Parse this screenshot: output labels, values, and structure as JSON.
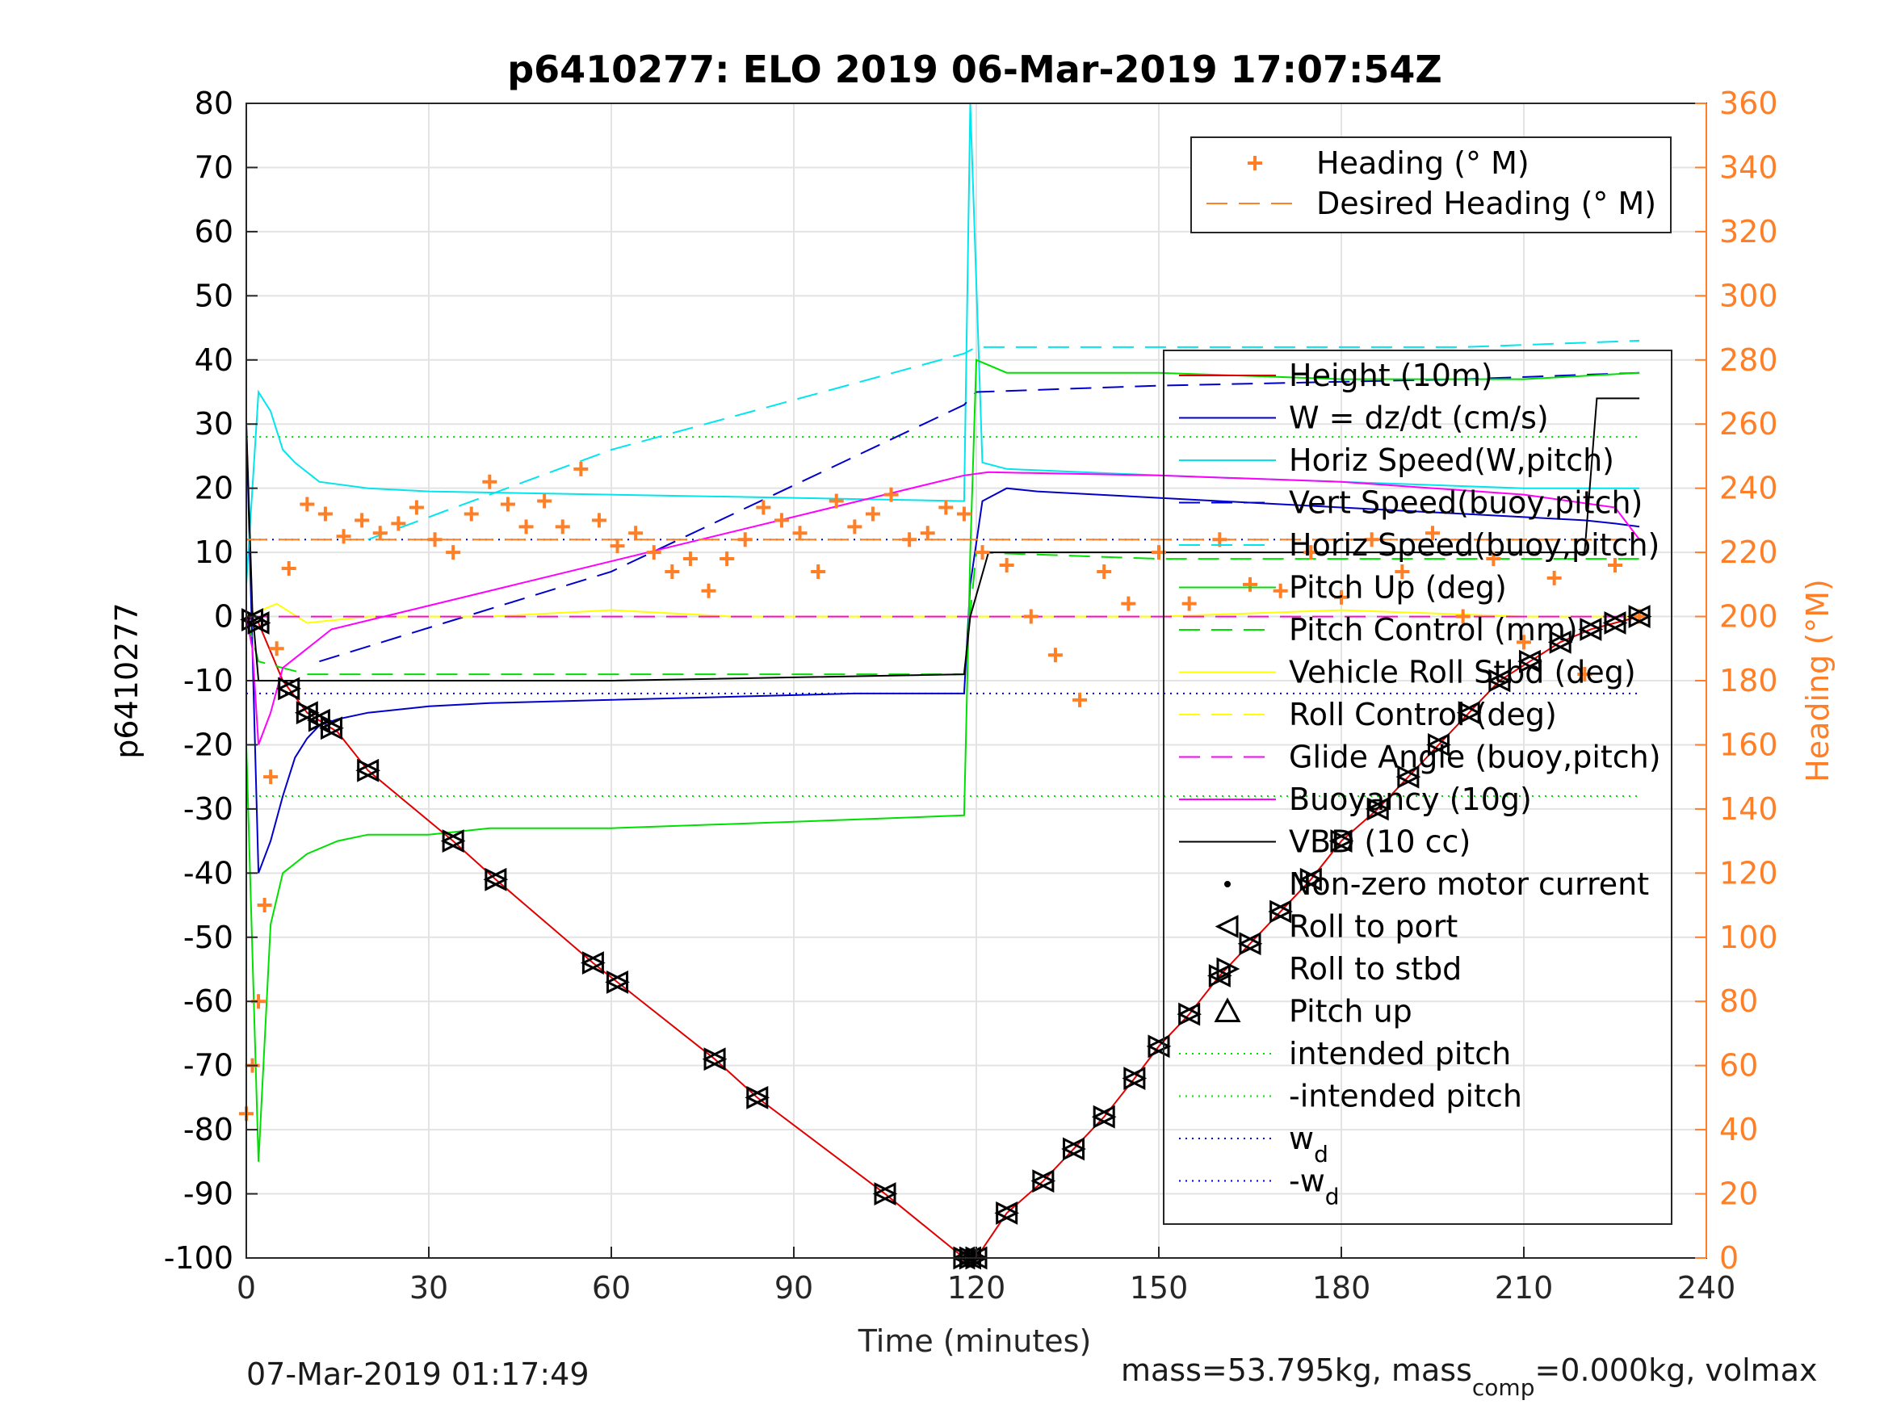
{
  "figure": {
    "title": "p6410277: ELO 2019 06-Mar-2019 17:07:54Z",
    "footer_left": "07-Mar-2019 01:17:49",
    "footer_right": {
      "mass_text": "mass=53.795kg, mass",
      "comp_sub": "comp",
      "rest_text": "=0.000kg, volmax"
    },
    "colors": {
      "heading": "#ff7f27",
      "depth": "#e00000",
      "w": "#0000cc",
      "horiz_speed": "#00e5ee",
      "pitch": "#00e000",
      "roll": "#ffff00",
      "glide": "#ff00ff",
      "vbd": "#000000"
    }
  },
  "chart_data": {
    "type": "line",
    "title": "p6410277: ELO 2019 06-Mar-2019 17:07:54Z",
    "xlabel": "Time (minutes)",
    "ylabel": "p6410277",
    "y2label": "Heading (°M)",
    "xlim": [
      0,
      240
    ],
    "ylim": [
      -100,
      80
    ],
    "y2lim": [
      0,
      360
    ],
    "xticks": [
      "0",
      "30",
      "60",
      "90",
      "120",
      "150",
      "180",
      "210",
      "240"
    ],
    "yticks": [
      "80",
      "70",
      "60",
      "50",
      "40",
      "30",
      "20",
      "10",
      "0",
      "-10",
      "-20",
      "-30",
      "-40",
      "-50",
      "-60",
      "-70",
      "-80",
      "-90",
      "-100"
    ],
    "y2ticks": [
      "360",
      "340",
      "320",
      "300",
      "280",
      "260",
      "240",
      "220",
      "200",
      "180",
      "160",
      "140",
      "120",
      "100",
      "80",
      "60",
      "40",
      "20",
      "0"
    ],
    "grid": true,
    "legend_heading": {
      "placement": "top-right",
      "entries": [
        "Heading (° M)",
        "Desired Heading (° M)"
      ]
    },
    "legend_main": {
      "placement": "right",
      "entries": [
        "Height (10m)",
        "W = dz/dt (cm/s)",
        "Horiz Speed(W,pitch)",
        "Vert Speed(buoy,pitch)",
        "Horiz Speed(buoy,pitch)",
        "Pitch Up (deg)",
        "Pitch Control (mm)",
        "Vehicle Roll Stbd (deg)",
        "Roll Control (deg)",
        "Glide Angle (buoy,pitch)",
        "Buoyancy (10g)",
        "VBD (10 cc)",
        "Non-zero motor current",
        "Roll to port",
        "Roll to stbd",
        "Pitch up",
        "intended pitch",
        "-intended pitch",
        "w",
        "-w"
      ],
      "subscript": "d"
    },
    "series": [
      {
        "name": "Height (10m)",
        "x": [
          0,
          2,
          6,
          10,
          15,
          20,
          34,
          41,
          57,
          61,
          77,
          84,
          105,
          118,
          119,
          120,
          125,
          131,
          136,
          141,
          146,
          150,
          155,
          160,
          165,
          170,
          175,
          180,
          186,
          191,
          196,
          201,
          206,
          211,
          216,
          221,
          225,
          229
        ],
        "values": [
          0,
          -1,
          -10,
          -15,
          -18,
          -24,
          -35,
          -41,
          -54,
          -57,
          -69,
          -75,
          -90,
          -100,
          -100,
          -100,
          -93,
          -88,
          -83,
          -78,
          -72,
          -67,
          -62,
          -56,
          -51,
          -46,
          -41,
          -35,
          -30,
          -25,
          -20,
          -15,
          -10,
          -7,
          -4,
          -2,
          -1,
          0
        ]
      },
      {
        "name": "W = dz/dt (cm/s)",
        "x": [
          0,
          2,
          4,
          6,
          8,
          10,
          12,
          15,
          20,
          30,
          40,
          60,
          80,
          100,
          118,
          119,
          121,
          125,
          130,
          140,
          150,
          160,
          170,
          180,
          190,
          200,
          210,
          220,
          225,
          229
        ],
        "values": [
          30,
          -40,
          -35,
          -28,
          -22,
          -19,
          -17,
          -16,
          -15,
          -14,
          -13.5,
          -13,
          -12.5,
          -12,
          -12,
          5,
          18,
          20,
          19.5,
          19,
          18.5,
          18,
          17.5,
          17,
          16.5,
          16,
          15.5,
          15,
          14.5,
          14
        ]
      },
      {
        "name": "Horiz Speed(W,pitch)",
        "x": [
          0,
          2,
          4,
          6,
          8,
          12,
          20,
          30,
          60,
          90,
          118,
          119,
          121,
          125,
          150,
          180,
          210,
          220,
          229
        ],
        "values": [
          5,
          35,
          32,
          26,
          24,
          21,
          20,
          19.5,
          19,
          18.5,
          18,
          80,
          24,
          23,
          22,
          21,
          20,
          20,
          20
        ]
      },
      {
        "name": "Vert Speed(buoy,pitch)",
        "x": [
          12,
          60,
          118,
          120,
          150,
          200,
          229
        ],
        "values": [
          -7,
          7,
          33,
          35,
          36,
          37,
          38
        ]
      },
      {
        "name": "Horiz Speed(buoy,pitch)",
        "x": [
          20,
          60,
          118,
          120,
          150,
          200,
          229
        ],
        "values": [
          12,
          26,
          41,
          42,
          42,
          42,
          43
        ]
      },
      {
        "name": "Pitch Up (deg)",
        "x": [
          0,
          2,
          4,
          6,
          10,
          15,
          20,
          30,
          40,
          60,
          90,
          118,
          119,
          120,
          125,
          150,
          180,
          210,
          229
        ],
        "values": [
          -20,
          -85,
          -48,
          -40,
          -37,
          -35,
          -34,
          -34,
          -33,
          -33,
          -32,
          -31,
          10,
          40,
          38,
          38,
          37,
          37,
          38
        ]
      },
      {
        "name": "Pitch Control (mm)",
        "x": [
          0,
          2,
          10,
          60,
          118,
          120,
          150,
          229
        ],
        "values": [
          0,
          -7,
          -9,
          -9,
          -9,
          10,
          9,
          9
        ]
      },
      {
        "name": "Vehicle Roll Stbd (deg)",
        "x": [
          0,
          5,
          10,
          20,
          40,
          60,
          80,
          100,
          118,
          125,
          150,
          180,
          210,
          229
        ],
        "values": [
          0,
          2,
          -1,
          0,
          0,
          1,
          0,
          0,
          0,
          0,
          0,
          1,
          0,
          0
        ]
      },
      {
        "name": "Roll Control (deg)",
        "x": [
          0,
          229
        ],
        "values": [
          0,
          0
        ]
      },
      {
        "name": "Glide Angle (buoy,pitch)",
        "x": [
          0,
          118,
          120,
          229
        ],
        "values": [
          0,
          0,
          0,
          0
        ]
      },
      {
        "name": "Buoyancy (10g)",
        "x": [
          0,
          1,
          2,
          4,
          6,
          10,
          14,
          118,
          122,
          150,
          180,
          210,
          225,
          229
        ],
        "values": [
          0,
          -5,
          -20,
          -15,
          -8,
          -5,
          -2,
          22,
          22.5,
          22,
          21,
          19,
          17,
          12
        ]
      },
      {
        "name": "VBD (10 cc)",
        "x": [
          0,
          1,
          2,
          3,
          60,
          118,
          119,
          122,
          125,
          150,
          220,
          222,
          229
        ],
        "values": [
          30,
          1,
          -10,
          -10,
          -10,
          -9,
          0,
          10,
          10,
          10,
          10,
          34,
          34
        ]
      },
      {
        "name": "Heading (° M)",
        "x": [
          0,
          1,
          2,
          3,
          4,
          5,
          7,
          10,
          13,
          16,
          19,
          22,
          25,
          28,
          31,
          34,
          37,
          40,
          43,
          46,
          49,
          52,
          55,
          58,
          61,
          64,
          67,
          70,
          73,
          76,
          79,
          82,
          85,
          88,
          91,
          94,
          97,
          100,
          103,
          106,
          109,
          112,
          115,
          118,
          121,
          125,
          129,
          133,
          137,
          141,
          145,
          150,
          155,
          160,
          165,
          170,
          175,
          180,
          185,
          190,
          195,
          200,
          205,
          210,
          215,
          220,
          225,
          229
        ],
        "values": [
          45,
          60,
          80,
          110,
          150,
          190,
          215,
          235,
          232,
          225,
          230,
          226,
          229,
          234,
          224,
          220,
          232,
          242,
          235,
          228,
          236,
          228,
          246,
          230,
          222,
          226,
          220,
          214,
          218,
          208,
          218,
          224,
          234,
          230,
          226,
          214,
          236,
          228,
          232,
          238,
          224,
          226,
          234,
          232,
          220,
          216,
          200,
          188,
          174,
          214,
          204,
          220,
          204,
          224,
          210,
          208,
          220,
          206,
          224,
          214,
          226,
          200,
          218,
          192,
          212,
          182,
          216,
          200
        ]
      },
      {
        "name": "Desired Heading (° M)",
        "x": [
          0,
          229
        ],
        "values": [
          224,
          224
        ]
      }
    ],
    "reference_lines": [
      {
        "name": "intended pitch",
        "value": 28
      },
      {
        "name": "-intended pitch",
        "value": -28
      },
      {
        "name": "w_d",
        "value": 12
      },
      {
        "name": "-w_d",
        "value": -12
      }
    ],
    "markers": {
      "roll_and_pitch_x": [
        1,
        2,
        7,
        10,
        12,
        14,
        20,
        34,
        41,
        57,
        61,
        77,
        84,
        105,
        118,
        119,
        120,
        125,
        131,
        136,
        141,
        146,
        150,
        155,
        160,
        165,
        170,
        175,
        180,
        186,
        191,
        196,
        201,
        206,
        211,
        216,
        221,
        225,
        229
      ]
    }
  }
}
